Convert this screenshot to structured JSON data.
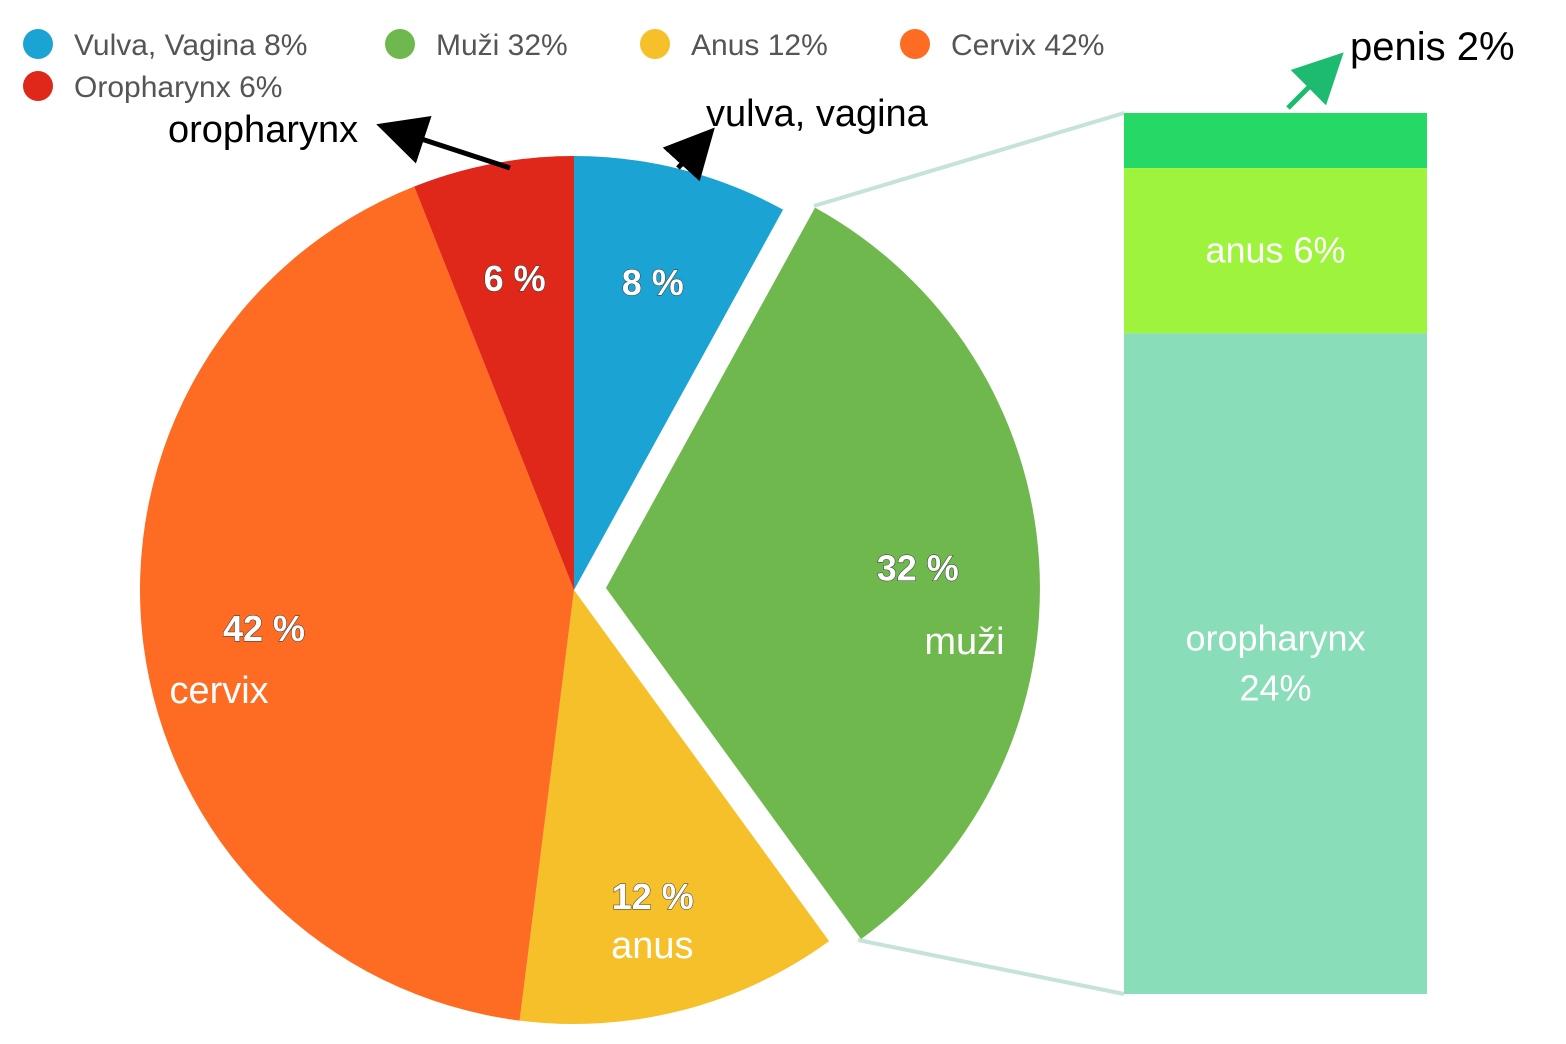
{
  "chart_data": {
    "type": "pie",
    "legend": {
      "placement": "top-left",
      "entries": [
        {
          "label": "Vulva, Vagina 8%",
          "color": "#1ba3d4"
        },
        {
          "label": "Muži 32%",
          "color": "#6fb84e"
        },
        {
          "label": "Anus 12%",
          "color": "#f6c02b"
        },
        {
          "label": "Cervix 42%",
          "color": "#fd6c22"
        },
        {
          "label": "Oropharynx 6%",
          "color": "#e0281a"
        }
      ]
    },
    "slices": [
      {
        "key": "vulva",
        "value": 8,
        "pct_label": "8 %",
        "name_label": "",
        "color": "#1ba3d4",
        "exploded": false
      },
      {
        "key": "muzi",
        "value": 32,
        "pct_label": "32 %",
        "name_label": "muži",
        "color": "#6fb84e",
        "exploded": true
      },
      {
        "key": "anus",
        "value": 12,
        "pct_label": "12 %",
        "name_label": "anus",
        "color": "#f6c02b",
        "exploded": false
      },
      {
        "key": "cervix",
        "value": 42,
        "pct_label": "42 %",
        "name_label": "cervix",
        "color": "#fd6c22",
        "exploded": false
      },
      {
        "key": "oropharynx",
        "value": 6,
        "pct_label": "6 %",
        "name_label": "",
        "color": "#e0281a",
        "exploded": false
      }
    ],
    "callouts": {
      "vulva": "vulva, vagina",
      "oropharynx": "oropharynx"
    },
    "breakdown": {
      "of_slice": "muzi",
      "connector_color": "#c5e3d6",
      "segments": [
        {
          "key": "penis",
          "value": 2,
          "label": "penis 2%",
          "color": "#26d966",
          "arrow_color": "#1dbb6f"
        },
        {
          "key": "anus",
          "value": 6,
          "label": "anus 6%",
          "color": "#9ef43c"
        },
        {
          "key": "oropharynx",
          "value": 24,
          "label_lines": [
            "oropharynx",
            "24%"
          ],
          "color": "#89ddb9"
        }
      ]
    }
  }
}
